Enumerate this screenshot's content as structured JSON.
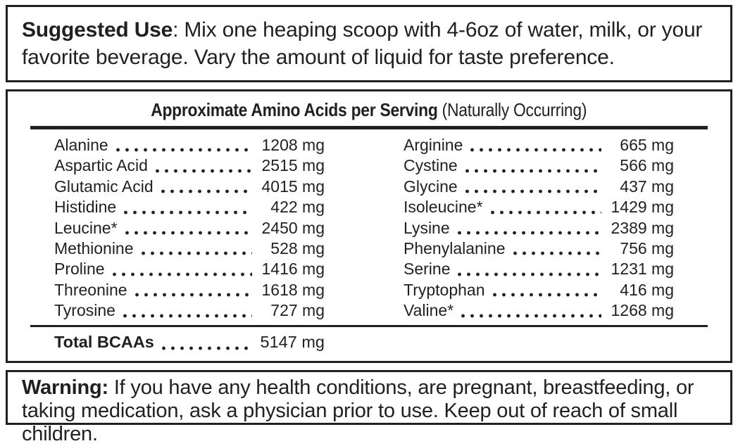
{
  "suggested_use": {
    "label": "Suggested Use",
    "text": ": Mix one heaping scoop with 4-6oz of water, milk, or your favorite beverage. Vary the amount of liquid for taste preference."
  },
  "amino_table": {
    "title_bold": "Approximate Amino Acids per Serving",
    "title_note": "(Naturally Occurring)",
    "unit": "mg",
    "left_column": [
      {
        "name": "Alanine",
        "value": "1208 mg"
      },
      {
        "name": "Aspartic Acid",
        "value": "2515 mg"
      },
      {
        "name": "Glutamic Acid",
        "value": "4015 mg"
      },
      {
        "name": "Histidine",
        "value": "422 mg"
      },
      {
        "name": "Leucine*",
        "value": "2450 mg"
      },
      {
        "name": "Methionine",
        "value": "528 mg"
      },
      {
        "name": "Proline",
        "value": "1416 mg"
      },
      {
        "name": "Threonine",
        "value": "1618 mg"
      },
      {
        "name": "Tyrosine",
        "value": "727 mg"
      }
    ],
    "right_column": [
      {
        "name": "Arginine",
        "value": "665 mg"
      },
      {
        "name": "Cystine",
        "value": "566 mg"
      },
      {
        "name": "Glycine",
        "value": "437 mg"
      },
      {
        "name": "Isoleucine*",
        "value": "1429 mg"
      },
      {
        "name": "Lysine",
        "value": "2389 mg"
      },
      {
        "name": "Phenylalanine",
        "value": "756 mg"
      },
      {
        "name": "Serine",
        "value": "1231 mg"
      },
      {
        "name": "Tryptophan",
        "value": "416 mg"
      },
      {
        "name": "Valine*",
        "value": "1268 mg"
      }
    ],
    "total": {
      "name": "Total BCAAs",
      "value": "5147 mg"
    }
  },
  "warning": {
    "label": "Warning:",
    "text": "If you have any health conditions, are pregnant, breastfeeding, or taking medication, ask a physician prior to use. Keep out of reach of small children."
  }
}
